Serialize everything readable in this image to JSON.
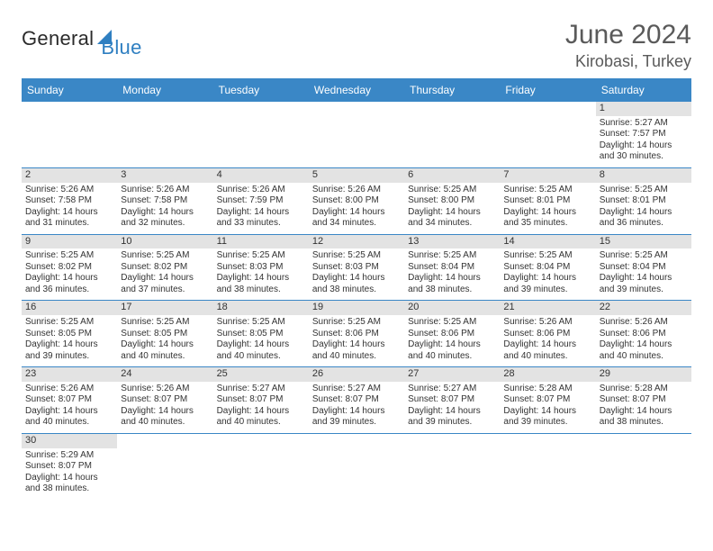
{
  "brand": {
    "part1": "General",
    "part2": "Blue"
  },
  "title": {
    "month": "June 2024",
    "location": "Kirobasi, Turkey"
  },
  "colors": {
    "accent": "#3a87c6",
    "daynum_bg": "#e3e3e3",
    "text": "#333333",
    "title_text": "#5a5a5a",
    "brand_blue": "#2f7fc1",
    "background": "#ffffff"
  },
  "day_headers": [
    "Sunday",
    "Monday",
    "Tuesday",
    "Wednesday",
    "Thursday",
    "Friday",
    "Saturday"
  ],
  "weeks": [
    [
      {
        "n": "",
        "sr": "",
        "ss": "",
        "dl1": "",
        "dl2": ""
      },
      {
        "n": "",
        "sr": "",
        "ss": "",
        "dl1": "",
        "dl2": ""
      },
      {
        "n": "",
        "sr": "",
        "ss": "",
        "dl1": "",
        "dl2": ""
      },
      {
        "n": "",
        "sr": "",
        "ss": "",
        "dl1": "",
        "dl2": ""
      },
      {
        "n": "",
        "sr": "",
        "ss": "",
        "dl1": "",
        "dl2": ""
      },
      {
        "n": "",
        "sr": "",
        "ss": "",
        "dl1": "",
        "dl2": ""
      },
      {
        "n": "1",
        "sr": "Sunrise: 5:27 AM",
        "ss": "Sunset: 7:57 PM",
        "dl1": "Daylight: 14 hours",
        "dl2": "and 30 minutes."
      }
    ],
    [
      {
        "n": "2",
        "sr": "Sunrise: 5:26 AM",
        "ss": "Sunset: 7:58 PM",
        "dl1": "Daylight: 14 hours",
        "dl2": "and 31 minutes."
      },
      {
        "n": "3",
        "sr": "Sunrise: 5:26 AM",
        "ss": "Sunset: 7:58 PM",
        "dl1": "Daylight: 14 hours",
        "dl2": "and 32 minutes."
      },
      {
        "n": "4",
        "sr": "Sunrise: 5:26 AM",
        "ss": "Sunset: 7:59 PM",
        "dl1": "Daylight: 14 hours",
        "dl2": "and 33 minutes."
      },
      {
        "n": "5",
        "sr": "Sunrise: 5:26 AM",
        "ss": "Sunset: 8:00 PM",
        "dl1": "Daylight: 14 hours",
        "dl2": "and 34 minutes."
      },
      {
        "n": "6",
        "sr": "Sunrise: 5:25 AM",
        "ss": "Sunset: 8:00 PM",
        "dl1": "Daylight: 14 hours",
        "dl2": "and 34 minutes."
      },
      {
        "n": "7",
        "sr": "Sunrise: 5:25 AM",
        "ss": "Sunset: 8:01 PM",
        "dl1": "Daylight: 14 hours",
        "dl2": "and 35 minutes."
      },
      {
        "n": "8",
        "sr": "Sunrise: 5:25 AM",
        "ss": "Sunset: 8:01 PM",
        "dl1": "Daylight: 14 hours",
        "dl2": "and 36 minutes."
      }
    ],
    [
      {
        "n": "9",
        "sr": "Sunrise: 5:25 AM",
        "ss": "Sunset: 8:02 PM",
        "dl1": "Daylight: 14 hours",
        "dl2": "and 36 minutes."
      },
      {
        "n": "10",
        "sr": "Sunrise: 5:25 AM",
        "ss": "Sunset: 8:02 PM",
        "dl1": "Daylight: 14 hours",
        "dl2": "and 37 minutes."
      },
      {
        "n": "11",
        "sr": "Sunrise: 5:25 AM",
        "ss": "Sunset: 8:03 PM",
        "dl1": "Daylight: 14 hours",
        "dl2": "and 38 minutes."
      },
      {
        "n": "12",
        "sr": "Sunrise: 5:25 AM",
        "ss": "Sunset: 8:03 PM",
        "dl1": "Daylight: 14 hours",
        "dl2": "and 38 minutes."
      },
      {
        "n": "13",
        "sr": "Sunrise: 5:25 AM",
        "ss": "Sunset: 8:04 PM",
        "dl1": "Daylight: 14 hours",
        "dl2": "and 38 minutes."
      },
      {
        "n": "14",
        "sr": "Sunrise: 5:25 AM",
        "ss": "Sunset: 8:04 PM",
        "dl1": "Daylight: 14 hours",
        "dl2": "and 39 minutes."
      },
      {
        "n": "15",
        "sr": "Sunrise: 5:25 AM",
        "ss": "Sunset: 8:04 PM",
        "dl1": "Daylight: 14 hours",
        "dl2": "and 39 minutes."
      }
    ],
    [
      {
        "n": "16",
        "sr": "Sunrise: 5:25 AM",
        "ss": "Sunset: 8:05 PM",
        "dl1": "Daylight: 14 hours",
        "dl2": "and 39 minutes."
      },
      {
        "n": "17",
        "sr": "Sunrise: 5:25 AM",
        "ss": "Sunset: 8:05 PM",
        "dl1": "Daylight: 14 hours",
        "dl2": "and 40 minutes."
      },
      {
        "n": "18",
        "sr": "Sunrise: 5:25 AM",
        "ss": "Sunset: 8:05 PM",
        "dl1": "Daylight: 14 hours",
        "dl2": "and 40 minutes."
      },
      {
        "n": "19",
        "sr": "Sunrise: 5:25 AM",
        "ss": "Sunset: 8:06 PM",
        "dl1": "Daylight: 14 hours",
        "dl2": "and 40 minutes."
      },
      {
        "n": "20",
        "sr": "Sunrise: 5:25 AM",
        "ss": "Sunset: 8:06 PM",
        "dl1": "Daylight: 14 hours",
        "dl2": "and 40 minutes."
      },
      {
        "n": "21",
        "sr": "Sunrise: 5:26 AM",
        "ss": "Sunset: 8:06 PM",
        "dl1": "Daylight: 14 hours",
        "dl2": "and 40 minutes."
      },
      {
        "n": "22",
        "sr": "Sunrise: 5:26 AM",
        "ss": "Sunset: 8:06 PM",
        "dl1": "Daylight: 14 hours",
        "dl2": "and 40 minutes."
      }
    ],
    [
      {
        "n": "23",
        "sr": "Sunrise: 5:26 AM",
        "ss": "Sunset: 8:07 PM",
        "dl1": "Daylight: 14 hours",
        "dl2": "and 40 minutes."
      },
      {
        "n": "24",
        "sr": "Sunrise: 5:26 AM",
        "ss": "Sunset: 8:07 PM",
        "dl1": "Daylight: 14 hours",
        "dl2": "and 40 minutes."
      },
      {
        "n": "25",
        "sr": "Sunrise: 5:27 AM",
        "ss": "Sunset: 8:07 PM",
        "dl1": "Daylight: 14 hours",
        "dl2": "and 40 minutes."
      },
      {
        "n": "26",
        "sr": "Sunrise: 5:27 AM",
        "ss": "Sunset: 8:07 PM",
        "dl1": "Daylight: 14 hours",
        "dl2": "and 39 minutes."
      },
      {
        "n": "27",
        "sr": "Sunrise: 5:27 AM",
        "ss": "Sunset: 8:07 PM",
        "dl1": "Daylight: 14 hours",
        "dl2": "and 39 minutes."
      },
      {
        "n": "28",
        "sr": "Sunrise: 5:28 AM",
        "ss": "Sunset: 8:07 PM",
        "dl1": "Daylight: 14 hours",
        "dl2": "and 39 minutes."
      },
      {
        "n": "29",
        "sr": "Sunrise: 5:28 AM",
        "ss": "Sunset: 8:07 PM",
        "dl1": "Daylight: 14 hours",
        "dl2": "and 38 minutes."
      }
    ],
    [
      {
        "n": "30",
        "sr": "Sunrise: 5:29 AM",
        "ss": "Sunset: 8:07 PM",
        "dl1": "Daylight: 14 hours",
        "dl2": "and 38 minutes."
      },
      {
        "n": "",
        "sr": "",
        "ss": "",
        "dl1": "",
        "dl2": ""
      },
      {
        "n": "",
        "sr": "",
        "ss": "",
        "dl1": "",
        "dl2": ""
      },
      {
        "n": "",
        "sr": "",
        "ss": "",
        "dl1": "",
        "dl2": ""
      },
      {
        "n": "",
        "sr": "",
        "ss": "",
        "dl1": "",
        "dl2": ""
      },
      {
        "n": "",
        "sr": "",
        "ss": "",
        "dl1": "",
        "dl2": ""
      },
      {
        "n": "",
        "sr": "",
        "ss": "",
        "dl1": "",
        "dl2": ""
      }
    ]
  ]
}
